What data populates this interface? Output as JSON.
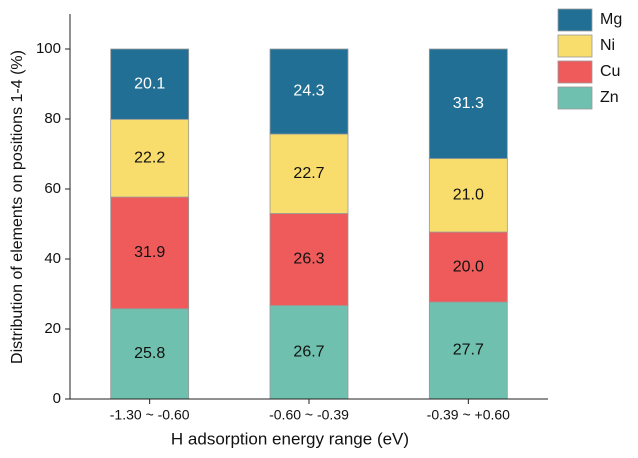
{
  "chart_data": {
    "type": "stacked_bar",
    "xlabel": "H adsorption energy range (eV)",
    "ylabel": "Distribution of elements on positions 1-4 (%)",
    "categories": [
      "-1.30 ~ -0.60",
      "-0.60 ~ -0.39",
      "-0.39 ~ +0.60"
    ],
    "series": [
      {
        "name": "Zn",
        "color": "#6fc0ae",
        "values": [
          25.8,
          26.7,
          27.7
        ],
        "value_labels": [
          "25.8",
          "26.7",
          "27.7"
        ]
      },
      {
        "name": "Cu",
        "color": "#ef5b5b",
        "values": [
          31.9,
          26.3,
          20.0
        ],
        "value_labels": [
          "31.9",
          "26.3",
          "20.0"
        ]
      },
      {
        "name": "Ni",
        "color": "#f8dd6c",
        "values": [
          22.2,
          22.7,
          21.0
        ],
        "value_labels": [
          "22.2",
          "22.7",
          "21.0"
        ]
      },
      {
        "name": "Mg",
        "color": "#226f96",
        "values": [
          20.1,
          24.3,
          31.3
        ],
        "value_labels": [
          "20.1",
          "24.3",
          "31.3"
        ]
      }
    ],
    "ylim": [
      0,
      110
    ],
    "yticks": [
      0,
      20,
      40,
      60,
      80,
      100
    ],
    "legend": "right"
  }
}
